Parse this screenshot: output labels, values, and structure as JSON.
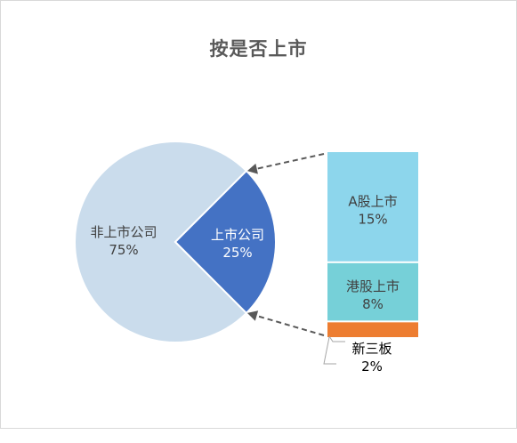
{
  "chart_data": {
    "type": "bar-of-pie",
    "title": "按是否上市",
    "pie": {
      "slices": [
        {
          "label": "非上市公司",
          "value_label": "75%",
          "value": 75,
          "color": "#cadcec",
          "text_color": "#404040"
        },
        {
          "label": "上市公司",
          "value_label": "25%",
          "value": 25,
          "color": "#4472c4",
          "text_color": "#ffffff"
        }
      ]
    },
    "bar": {
      "segments": [
        {
          "label": "A股上市",
          "value_label": "15%",
          "value": 15,
          "color": "#8dd6ec",
          "text_color": "#404040"
        },
        {
          "label": "港股上市",
          "value_label": "8%",
          "value": 8,
          "color": "#76d0d8",
          "text_color": "#404040"
        },
        {
          "label": "新三板",
          "value_label": "2%",
          "value": 2,
          "color": "#ed7d31",
          "text_color": "#000000"
        }
      ]
    }
  }
}
